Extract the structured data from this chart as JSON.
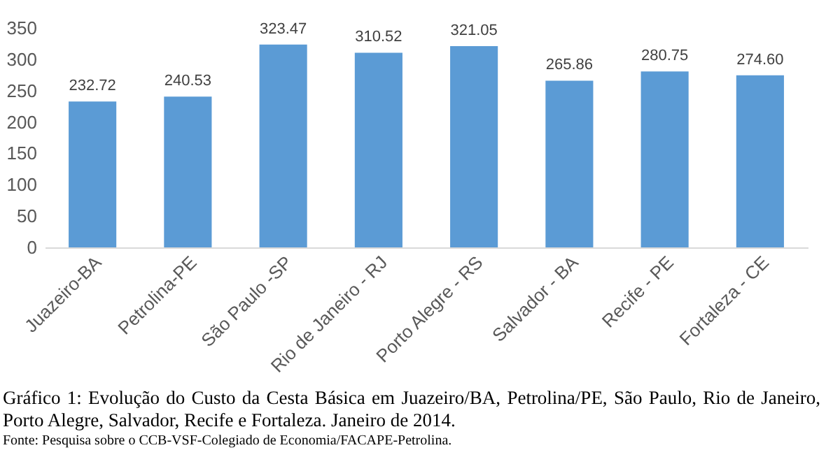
{
  "chart_data": {
    "type": "bar",
    "categories": [
      "Juazeiro-BA",
      "Petrolina-PE",
      "São Paulo -SP",
      "Rio de Janeiro - RJ",
      "Porto Alegre - RS",
      "Salvador - BA",
      "Recife - PE",
      "Fortaleza - CE"
    ],
    "values": [
      232.72,
      240.53,
      323.47,
      310.52,
      321.05,
      265.86,
      280.75,
      274.6
    ],
    "value_labels": [
      "232.72",
      "240.53",
      "323.47",
      "310.52",
      "321.05",
      "265.86",
      "280.75",
      "274.60"
    ],
    "color": "#5b9bd5",
    "ylim": [
      0,
      350
    ],
    "yticks": [
      0,
      50,
      100,
      150,
      200,
      250,
      300,
      350
    ],
    "annotations": [
      "Gráfico 1: Evolução do Custo da Cesta Básica em Juazeiro/BA, Petrolina/PE, São Paulo, Rio de Janeiro, Porto Alegre, Salvador, Recife e Fortaleza. Janeiro de 2014.",
      "Fonte: Pesquisa sobre o CCB-VSF-Colegiado de Economia/FACAPE-Petrolina."
    ]
  }
}
